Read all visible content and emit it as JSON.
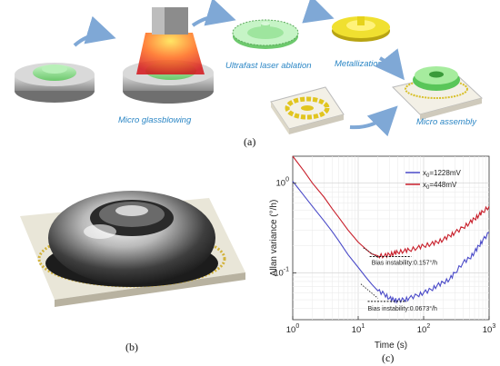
{
  "figure": {
    "panel_a": {
      "label": "(a)",
      "steps": [
        "Micro glassblowing",
        "Ultrafast laser ablation",
        "Metallization",
        "Micro assembly"
      ]
    },
    "panel_b": {
      "label": "(b)"
    },
    "panel_c": {
      "label": "(c)"
    }
  },
  "colors": {
    "arrow": "#7fa8d6",
    "caption_blue": "#2b86c5",
    "series_blue": "#4a4ac8",
    "series_red": "#c81e2a",
    "glass_green": "#8fe08f",
    "metal_gold": "#e6d21a"
  },
  "chart_data": {
    "type": "line",
    "xlabel": "Time (s)",
    "ylabel": "Allan variance (°/h)",
    "xscale": "log",
    "yscale": "log",
    "xlim": [
      1,
      1000
    ],
    "ylim": [
      0.03,
      2
    ],
    "grid": true,
    "legend_position": "top-right",
    "x_ticks": [
      {
        "value": 1,
        "base": "10",
        "exp": "0"
      },
      {
        "value": 10,
        "base": "10",
        "exp": "1"
      },
      {
        "value": 100,
        "base": "10",
        "exp": "2"
      },
      {
        "value": 1000,
        "base": "10",
        "exp": "3"
      }
    ],
    "y_ticks": [
      {
        "value": 0.1,
        "base": "10",
        "exp": "-1"
      },
      {
        "value": 1,
        "base": "10",
        "exp": "0"
      }
    ],
    "series": [
      {
        "name": "x₀=1228mV",
        "legend_main": "x",
        "legend_sub": "0",
        "legend_rest": "=1228mV",
        "color": "#4a4ac8",
        "x": [
          1,
          1.5,
          2,
          3,
          4,
          5,
          7,
          10,
          13,
          16,
          20,
          25,
          30,
          35,
          40,
          50,
          60,
          80,
          100,
          130,
          160,
          200,
          250,
          300,
          400,
          500,
          600,
          700,
          800,
          1000
        ],
        "y": [
          1.05,
          0.72,
          0.55,
          0.38,
          0.29,
          0.23,
          0.16,
          0.115,
          0.09,
          0.075,
          0.063,
          0.058,
          0.052,
          0.05,
          0.049,
          0.05,
          0.052,
          0.056,
          0.06,
          0.065,
          0.072,
          0.078,
          0.085,
          0.1,
          0.13,
          0.145,
          0.17,
          0.2,
          0.23,
          0.28
        ]
      },
      {
        "name": "x₀=448mV",
        "legend_main": "x",
        "legend_sub": "0",
        "legend_rest": "=448mV",
        "color": "#c81e2a",
        "x": [
          1,
          1.5,
          2,
          3,
          4,
          5,
          7,
          10,
          13,
          16,
          20,
          25,
          30,
          35,
          40,
          50,
          60,
          80,
          100,
          130,
          160,
          200,
          250,
          300,
          400,
          500,
          600,
          700,
          800,
          1000
        ],
        "y": [
          2.0,
          1.35,
          1.0,
          0.7,
          0.52,
          0.42,
          0.3,
          0.22,
          0.185,
          0.163,
          0.155,
          0.155,
          0.16,
          0.165,
          0.17,
          0.175,
          0.18,
          0.19,
          0.2,
          0.21,
          0.22,
          0.235,
          0.26,
          0.28,
          0.32,
          0.36,
          0.4,
          0.44,
          0.48,
          0.55
        ]
      }
    ],
    "annotations": [
      {
        "text": "Bias instability:0.157°/h",
        "x_range": [
          15,
          65
        ],
        "y": 0.152,
        "text_x": 16,
        "text_y": 0.123
      },
      {
        "text": "Bias instability:0.0673°/h",
        "x_range": [
          14,
          55
        ],
        "y": 0.048,
        "text_x": 14,
        "text_y": 0.038
      }
    ]
  }
}
